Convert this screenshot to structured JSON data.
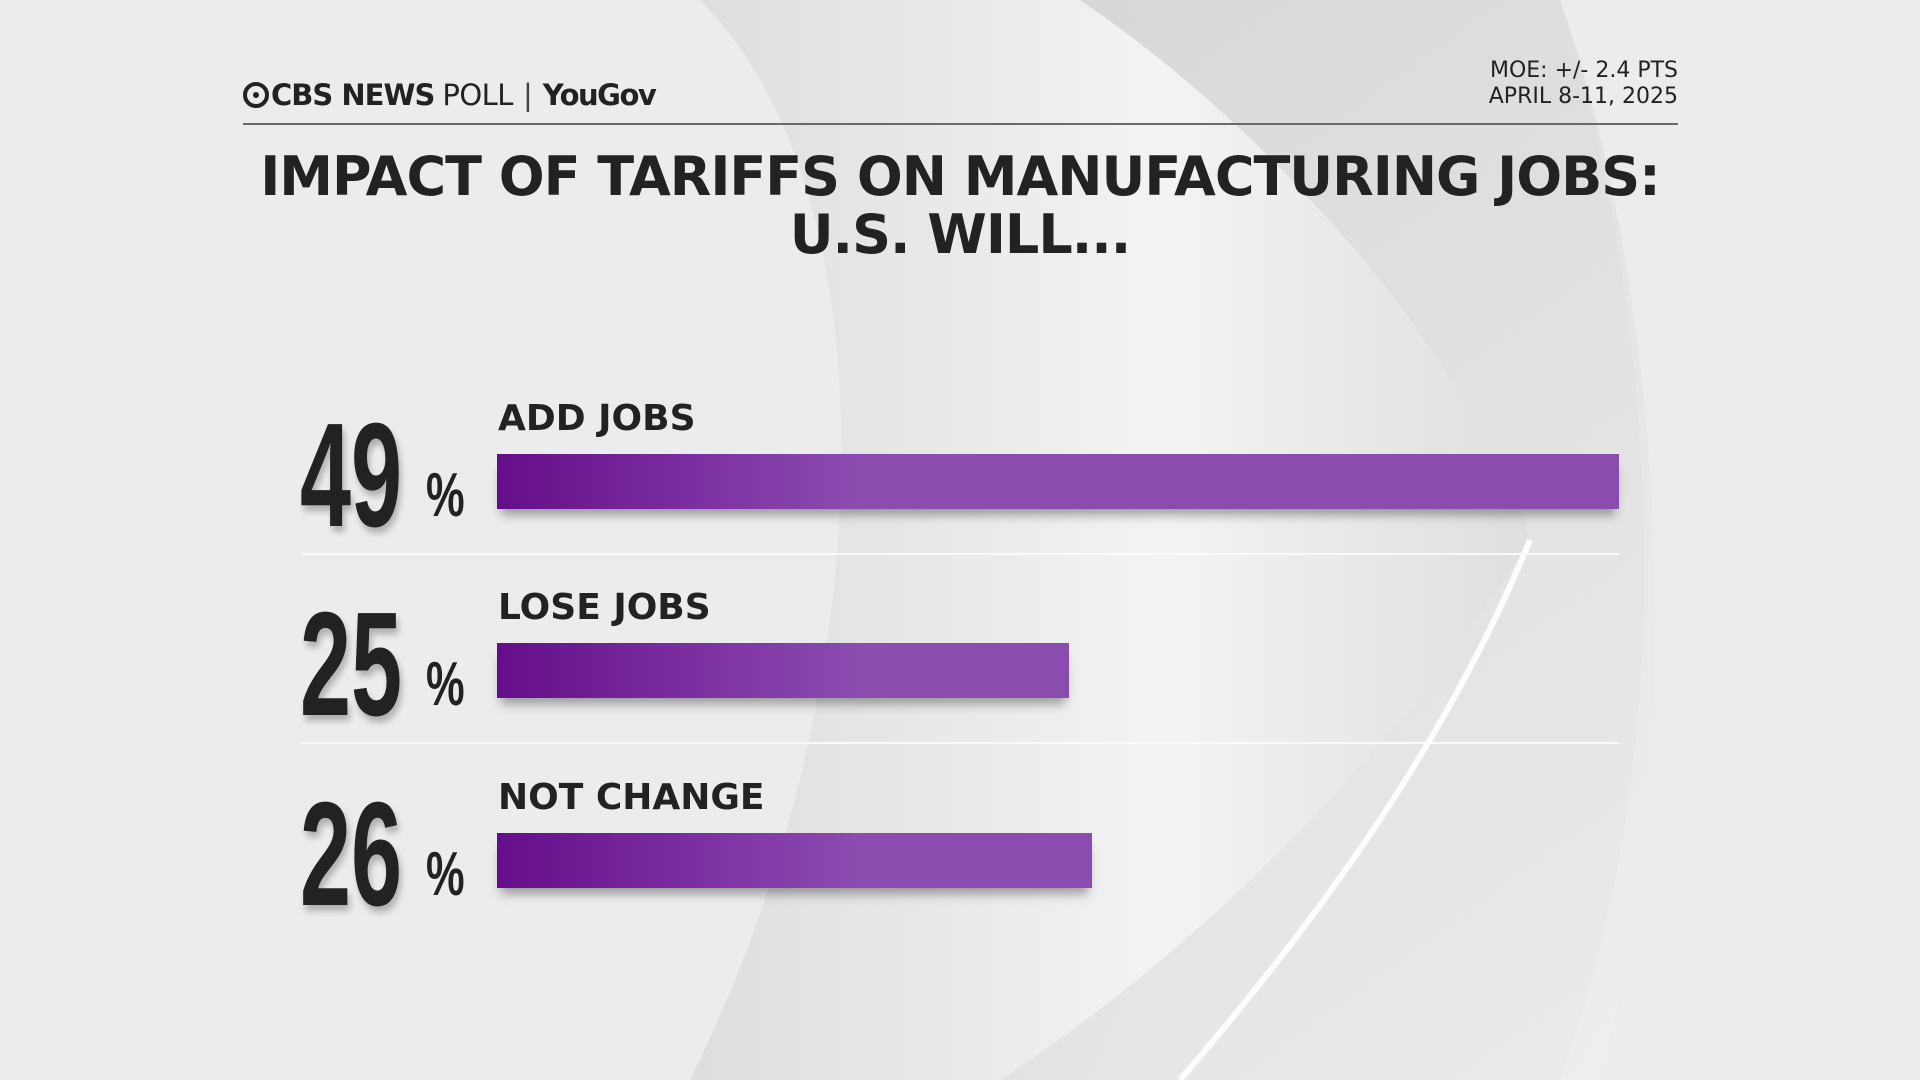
{
  "header": {
    "brand": "CBS NEWS",
    "brand_suffix": "POLL",
    "partner": "YouGov",
    "moe": "MOE: +/- 2.4 PTS",
    "dates": "APRIL 8-11, 2025"
  },
  "chart_data": {
    "type": "bar",
    "orientation": "horizontal",
    "title": "IMPACT OF TARIFFS ON MANUFACTURING JOBS:",
    "subtitle": "U.S. WILL...",
    "categories": [
      "ADD JOBS",
      "LOSE JOBS",
      "NOT CHANGE"
    ],
    "values": [
      49,
      25,
      26
    ],
    "value_labels": [
      "49",
      "25",
      "26"
    ],
    "unit": "%",
    "bar_color": "#8b4cb0",
    "bar_gradient_start": "#650e8a"
  }
}
